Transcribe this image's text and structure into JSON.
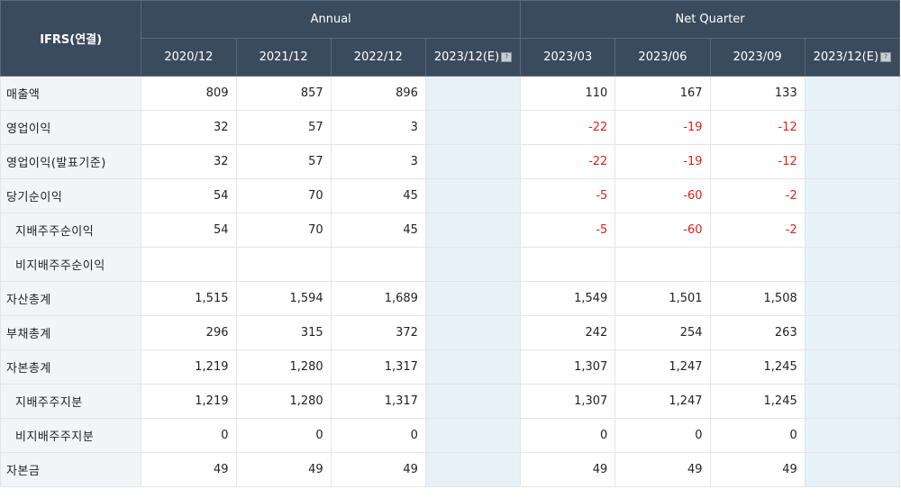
{
  "table": {
    "corner": "IFRS(연결)",
    "groups": {
      "annual": "Annual",
      "quarter": "Net Quarter"
    },
    "columns": [
      "2020/12",
      "2021/12",
      "2022/12",
      "2023/12(E)",
      "2023/03",
      "2023/06",
      "2023/09",
      "2023/12(E)"
    ],
    "rows": [
      {
        "label": "매출액",
        "values": [
          "809",
          "857",
          "896",
          "",
          "110",
          "167",
          "133",
          ""
        ]
      },
      {
        "label": "영업이익",
        "values": [
          "32",
          "57",
          "3",
          "",
          "-22",
          "-19",
          "-12",
          ""
        ]
      },
      {
        "label": "영업이익(발표기준)",
        "values": [
          "32",
          "57",
          "3",
          "",
          "-22",
          "-19",
          "-12",
          ""
        ]
      },
      {
        "label": "당기순이익",
        "values": [
          "54",
          "70",
          "45",
          "",
          "-5",
          "-60",
          "-2",
          ""
        ]
      },
      {
        "label": "지배주주순이익",
        "values": [
          "54",
          "70",
          "45",
          "",
          "-5",
          "-60",
          "-2",
          ""
        ]
      },
      {
        "label": "비지배주주순이익",
        "values": [
          "",
          "",
          "",
          "",
          "",
          "",
          "",
          ""
        ]
      },
      {
        "label": "자산총계",
        "values": [
          "1,515",
          "1,594",
          "1,689",
          "",
          "1,549",
          "1,501",
          "1,508",
          ""
        ]
      },
      {
        "label": "부채총계",
        "values": [
          "296",
          "315",
          "372",
          "",
          "242",
          "254",
          "263",
          ""
        ]
      },
      {
        "label": "자본총계",
        "values": [
          "1,219",
          "1,280",
          "1,317",
          "",
          "1,307",
          "1,247",
          "1,245",
          ""
        ]
      },
      {
        "label": "지배주주지분",
        "values": [
          "1,219",
          "1,280",
          "1,317",
          "",
          "1,307",
          "1,247",
          "1,245",
          ""
        ]
      },
      {
        "label": "비지배주주지분",
        "values": [
          "0",
          "0",
          "0",
          "",
          "0",
          "0",
          "0",
          ""
        ]
      },
      {
        "label": "자본금",
        "values": [
          "49",
          "49",
          "49",
          "",
          "49",
          "49",
          "49",
          ""
        ]
      }
    ]
  }
}
